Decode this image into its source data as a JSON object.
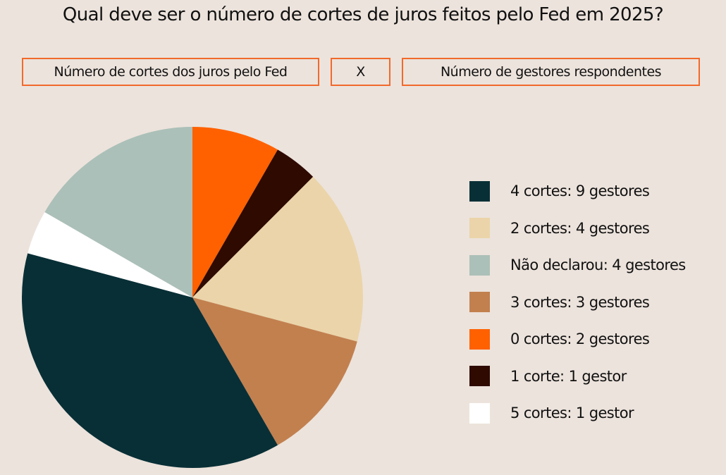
{
  "chart_data": {
    "type": "pie",
    "title": "Qual deve ser o número de cortes de juros feitos pelo Fed em 2025?",
    "header_boxes": {
      "left": "Número de cortes dos juros pelo Fed",
      "middle": "X",
      "right": "Número de gestores respondentes"
    },
    "slices": [
      {
        "label": "0 cortes: 2 gestores",
        "value": 2,
        "color": "#ff6100"
      },
      {
        "label": "1 corte: 1 gestor",
        "value": 1,
        "color": "#2e0a00"
      },
      {
        "label": "2 cortes: 4 gestores",
        "value": 4,
        "color": "#ebd4a9"
      },
      {
        "label": "3 cortes: 3 gestores",
        "value": 3,
        "color": "#c2804f"
      },
      {
        "label": "4 cortes: 9 gestores",
        "value": 9,
        "color": "#082f36"
      },
      {
        "label": "5 cortes: 1 gestor",
        "value": 1,
        "color": "#ffffff"
      },
      {
        "label": "Não declarou: 4 gestores",
        "value": 4,
        "color": "#abc0b8"
      }
    ],
    "legend_order": [
      "4 cortes: 9 gestores",
      "2 cortes: 4 gestores",
      "Não declarou: 4 gestores",
      "3 cortes: 3 gestores",
      "0 cortes: 2 gestores",
      "1 corte: 1 gestor",
      "5 cortes: 1 gestor"
    ],
    "legend_position": "right"
  }
}
